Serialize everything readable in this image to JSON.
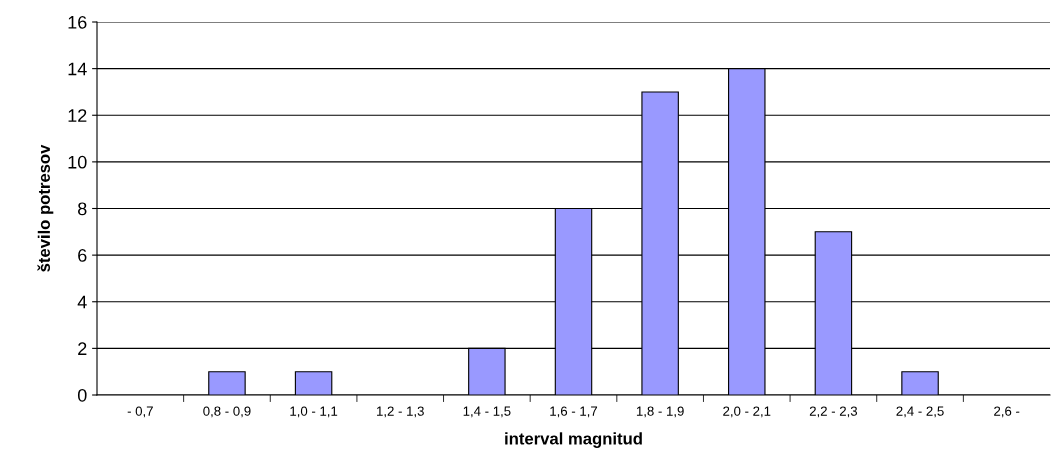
{
  "chart_data": {
    "type": "bar",
    "xlabel": "interval magnitud",
    "ylabel": "število potresov",
    "categories": [
      "- 0,7",
      "0,8 - 0,9",
      "1,0 - 1,1",
      "1,2 - 1,3",
      "1,4 - 1,5",
      "1,6 - 1,7",
      "1,8 - 1,9",
      "2,0 - 2,1",
      "2,2 - 2,3",
      "2,4 - 2,5",
      "2,6 -"
    ],
    "values": [
      0,
      1,
      1,
      0,
      2,
      8,
      13,
      14,
      7,
      1,
      0
    ],
    "color": "#9999ff",
    "ylim": [
      0,
      16
    ],
    "yticks": [
      0,
      2,
      4,
      6,
      8,
      10,
      12,
      14,
      16
    ],
    "grid": "y",
    "legend": false
  }
}
